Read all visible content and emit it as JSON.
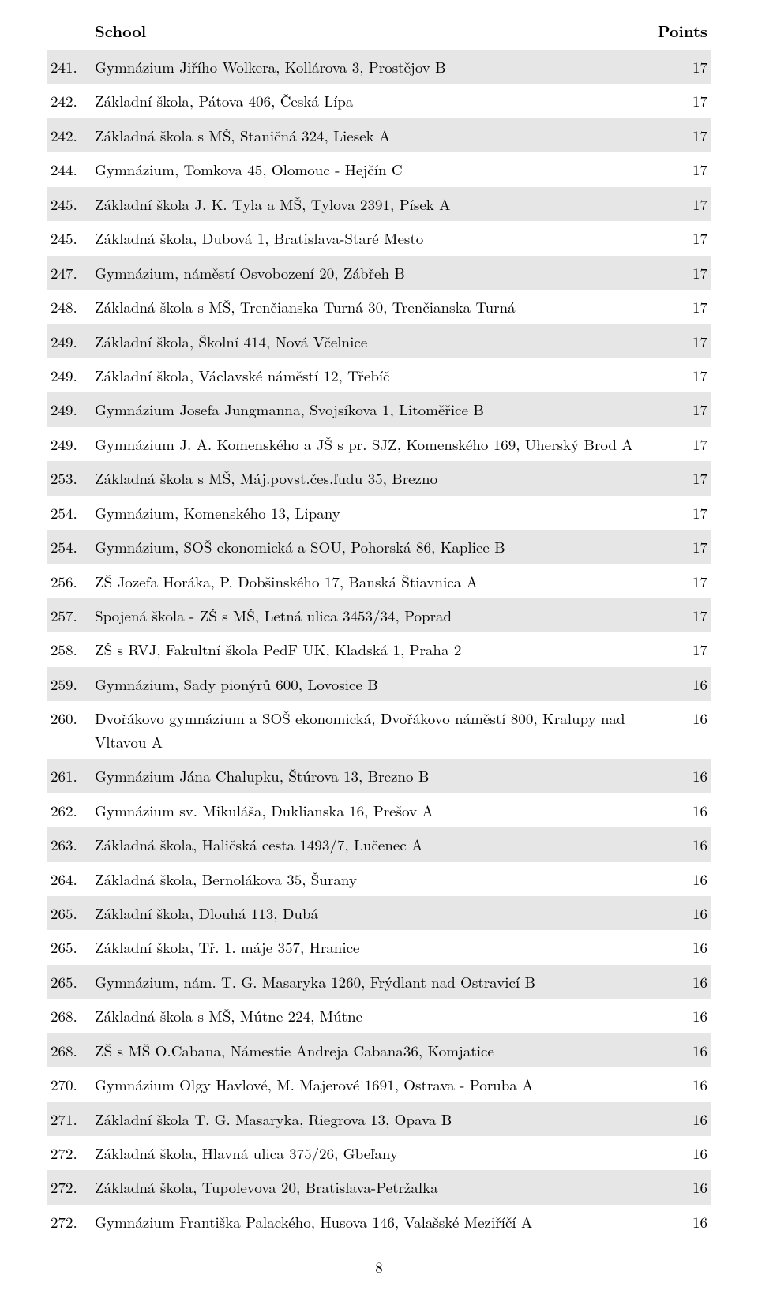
{
  "header": {
    "school_label": "School",
    "points_label": "Points"
  },
  "footer": {
    "page_number": "8"
  },
  "table": {
    "rows": [
      {
        "rank": "241.",
        "school": "Gymnázium Jiřího Wolkera, Kollárova 3, Prostějov B",
        "points": "17"
      },
      {
        "rank": "242.",
        "school": "Základní škola, Pátova 406, Česká Lípa",
        "points": "17"
      },
      {
        "rank": "242.",
        "school": "Základná škola s MŠ, Staničná 324, Liesek A",
        "points": "17"
      },
      {
        "rank": "244.",
        "school": "Gymnázium, Tomkova 45, Olomouc - Hejčín C",
        "points": "17"
      },
      {
        "rank": "245.",
        "school": "Základní škola J. K. Tyla a MŠ, Tylova 2391, Písek A",
        "points": "17"
      },
      {
        "rank": "245.",
        "school": "Základná škola, Dubová 1, Bratislava-Staré Mesto",
        "points": "17"
      },
      {
        "rank": "247.",
        "school": "Gymnázium, náměstí Osvobození 20, Zábřeh B",
        "points": "17"
      },
      {
        "rank": "248.",
        "school": "Základná škola s MŠ, Trenčianska Turná 30, Trenčianska Turná",
        "points": "17"
      },
      {
        "rank": "249.",
        "school": "Základní škola, Školní 414, Nová Včelnice",
        "points": "17"
      },
      {
        "rank": "249.",
        "school": "Základní škola, Václavské náměstí 12, Třebíč",
        "points": "17"
      },
      {
        "rank": "249.",
        "school": "Gymnázium Josefa Jungmanna, Svojsíkova 1, Litoměřice B",
        "points": "17"
      },
      {
        "rank": "249.",
        "school": "Gymnázium J. A. Komenského a JŠ s pr. SJZ, Komenského 169, Uherský Brod A",
        "points": "17"
      },
      {
        "rank": "253.",
        "school": "Základná škola s MŠ, Máj.povst.čes.ľudu 35, Brezno",
        "points": "17"
      },
      {
        "rank": "254.",
        "school": "Gymnázium, Komenského 13, Lipany",
        "points": "17"
      },
      {
        "rank": "254.",
        "school": "Gymnázium, SOŠ ekonomická a SOU, Pohorská 86, Kaplice B",
        "points": "17"
      },
      {
        "rank": "256.",
        "school": "ZŠ Jozefa Horáka, P. Dobšinského 17, Banská Štiavnica A",
        "points": "17"
      },
      {
        "rank": "257.",
        "school": "Spojená škola - ZŠ s MŠ, Letná ulica 3453/34, Poprad",
        "points": "17"
      },
      {
        "rank": "258.",
        "school": "ZŠ s RVJ, Fakultní škola PedF UK, Kladská 1, Praha 2",
        "points": "17"
      },
      {
        "rank": "259.",
        "school": "Gymnázium, Sady pionýrů 600, Lovosice B",
        "points": "16"
      },
      {
        "rank": "260.",
        "school": "Dvořákovo gymnázium a SOŠ ekonomická, Dvořákovo náměstí 800, Kralupy nad Vltavou A",
        "points": "16"
      },
      {
        "rank": "261.",
        "school": "Gymnázium Jána Chalupku, Štúrova 13, Brezno B",
        "points": "16"
      },
      {
        "rank": "262.",
        "school": "Gymnázium sv. Mikuláša, Duklianska 16, Prešov A",
        "points": "16"
      },
      {
        "rank": "263.",
        "school": "Základná škola, Haličská cesta 1493/7, Lučenec A",
        "points": "16"
      },
      {
        "rank": "264.",
        "school": "Základná škola, Bernolákova 35, Šurany",
        "points": "16"
      },
      {
        "rank": "265.",
        "school": "Základní škola, Dlouhá 113, Dubá",
        "points": "16"
      },
      {
        "rank": "265.",
        "school": "Základní škola, Tř. 1. máje 357, Hranice",
        "points": "16"
      },
      {
        "rank": "265.",
        "school": "Gymnázium, nám. T. G. Masaryka 1260, Frýdlant nad Ostravicí B",
        "points": "16"
      },
      {
        "rank": "268.",
        "school": "Základná škola s MŠ, Mútne 224, Mútne",
        "points": "16"
      },
      {
        "rank": "268.",
        "school": "ZŠ s MŠ O.Cabana, Námestie Andreja Cabana36, Komjatice",
        "points": "16"
      },
      {
        "rank": "270.",
        "school": "Gymnázium Olgy Havlové, M. Majerové 1691, Ostrava - Poruba A",
        "points": "16"
      },
      {
        "rank": "271.",
        "school": "Základní škola T. G. Masaryka, Riegrova 13, Opava B",
        "points": "16"
      },
      {
        "rank": "272.",
        "school": "Základná škola, Hlavná ulica 375/26, Gbeľany",
        "points": "16"
      },
      {
        "rank": "272.",
        "school": "Základná škola, Tupolevova 20, Bratislava-Petržalka",
        "points": "16"
      },
      {
        "rank": "272.",
        "school": "Gymnázium Františka Palackého, Husova 146, Valašské Meziříčí A",
        "points": "16"
      }
    ]
  }
}
